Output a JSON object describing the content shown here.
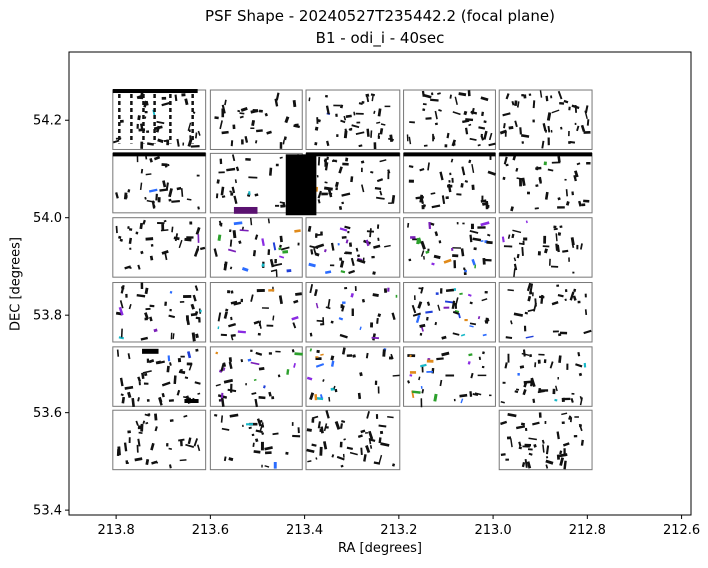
{
  "chart_data": {
    "type": "scatter",
    "title": "PSF Shape - 20240527T235442.2 (focal plane)",
    "subtitle": "B1 - odi_i - 40sec",
    "xlabel": "RA [degrees]",
    "ylabel": "DEC [degrees]",
    "xlim": [
      213.9,
      212.58
    ],
    "ylim": [
      53.39,
      54.34
    ],
    "x_inverted": true,
    "xticks": [
      213.8,
      213.6,
      213.4,
      213.2,
      213.0,
      212.8,
      212.6
    ],
    "xtick_labels": [
      "213.8",
      "213.6",
      "213.4",
      "213.2",
      "213.0",
      "212.8",
      "212.6"
    ],
    "yticks": [
      53.4,
      53.6,
      53.8,
      54.0,
      54.2
    ],
    "ytick_labels": [
      "53.4",
      "53.6",
      "53.8",
      "54.0",
      "54.2"
    ],
    "grid": false,
    "detector_layout": {
      "columns_ra": [
        [
          213.807,
          213.61
        ],
        [
          213.6,
          213.405
        ],
        [
          213.397,
          213.198
        ],
        [
          213.19,
          212.995
        ],
        [
          212.987,
          212.79
        ]
      ],
      "rows_dec": [
        [
          54.14,
          54.262
        ],
        [
          54.01,
          54.132
        ],
        [
          53.878,
          54.0
        ],
        [
          53.745,
          53.867
        ],
        [
          53.613,
          53.735
        ],
        [
          53.483,
          53.605
        ]
      ],
      "missing_cells": [
        [
          5,
          3
        ]
      ]
    },
    "colors": {
      "dominant": "#111111",
      "accents": [
        "#1f3fd8",
        "#2b6cff",
        "#7a1fb8",
        "#17b8c8",
        "#2ca02c",
        "#8a2be2",
        "#e08a1a"
      ]
    }
  }
}
